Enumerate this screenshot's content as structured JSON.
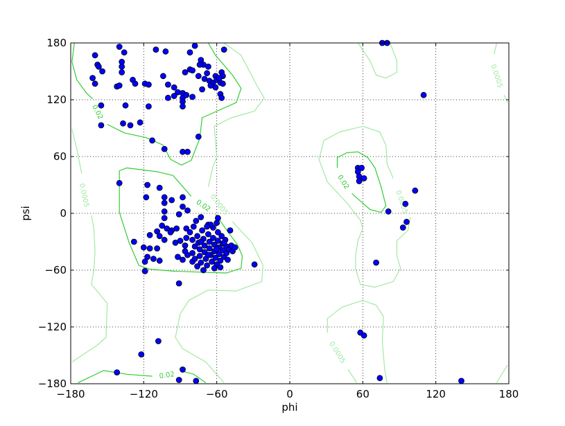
{
  "chart_data": {
    "type": "scatter",
    "title": "",
    "xlabel": "phi",
    "ylabel": "psi",
    "xlim": [
      -180,
      180
    ],
    "ylim": [
      -180,
      180
    ],
    "xticks": [
      -180,
      -120,
      -60,
      0,
      60,
      120,
      180
    ],
    "yticks": [
      -180,
      -120,
      -60,
      0,
      60,
      120,
      180
    ],
    "xtick_labels": [
      "−180",
      "−120",
      "−60",
      "0",
      "60",
      "120",
      "180"
    ],
    "ytick_labels": [
      "−180",
      "−120",
      "−60",
      "0",
      "60",
      "120",
      "180"
    ],
    "grid": true,
    "grid_style": "dotted",
    "colors": {
      "points": "#0000ff",
      "point_edge": "#000000",
      "contour_high": "#33cc33",
      "contour_low": "#a3e8a3"
    },
    "contour_levels": [
      {
        "level": "0.02",
        "color": "#33cc33"
      },
      {
        "level": "0.0005",
        "color": "#a3e8a3"
      }
    ],
    "contours": [
      {
        "level": "0.02",
        "points": [
          [
            -177,
            180
          ],
          [
            -179,
            160
          ],
          [
            -175,
            141
          ],
          [
            -167,
            127
          ],
          [
            -162,
            121
          ]
        ]
      },
      {
        "level": "0.02",
        "points": [
          [
            -150,
            94
          ],
          [
            -136,
            85
          ],
          [
            -118,
            80
          ],
          [
            -104,
            72
          ],
          [
            -98,
            57
          ],
          [
            -89,
            51
          ],
          [
            -81,
            56
          ],
          [
            -74,
            79
          ],
          [
            -72,
            101
          ],
          [
            -44,
            117
          ],
          [
            -40,
            132
          ],
          [
            -47,
            146
          ],
          [
            -61,
            167
          ],
          [
            -67,
            180
          ]
        ]
      },
      {
        "level": "0.02",
        "points": [
          [
            -81,
            18
          ],
          [
            -96,
            40
          ],
          [
            -109,
            44
          ],
          [
            -134,
            48
          ],
          [
            -140,
            45
          ],
          [
            -140,
            30
          ],
          [
            -140,
            1
          ],
          [
            -132,
            -31
          ],
          [
            -124,
            -55
          ],
          [
            -115,
            -59
          ],
          [
            -96,
            -61
          ],
          [
            -77,
            -62
          ],
          [
            -52,
            -63
          ],
          [
            -40,
            -58
          ],
          [
            -39,
            -45
          ],
          [
            -43,
            -33
          ],
          [
            -50,
            -21
          ],
          [
            -61,
            -1
          ]
        ]
      },
      {
        "level": "0.02",
        "points": [
          [
            39,
            48
          ],
          [
            39,
            59
          ],
          [
            47,
            64
          ],
          [
            56,
            65
          ],
          [
            64,
            59
          ],
          [
            70,
            48
          ],
          [
            75,
            28
          ],
          [
            79,
            8
          ],
          [
            75,
            1
          ],
          [
            66,
            4
          ],
          [
            58,
            13
          ],
          [
            51,
            21
          ]
        ]
      },
      {
        "level": "0.02",
        "points": [
          [
            -174,
            -179
          ],
          [
            -153,
            -166
          ],
          [
            -134,
            -170
          ],
          [
            -113,
            -172
          ]
        ]
      },
      {
        "level": "0.02",
        "points": [
          [
            -90,
            -166
          ],
          [
            -79,
            -170
          ],
          [
            -69,
            -179
          ]
        ]
      },
      {
        "level": "0.0005",
        "points": [
          [
            -54,
            180
          ],
          [
            -40,
            167
          ],
          [
            -27,
            135
          ],
          [
            -21,
            122
          ],
          [
            -29,
            108
          ],
          [
            -48,
            101
          ],
          [
            -62,
            92
          ],
          [
            -60,
            59
          ],
          [
            -63,
            50
          ],
          [
            -67,
            28
          ]
        ]
      },
      {
        "level": "0.0005",
        "points": [
          [
            -47,
            -9
          ],
          [
            -31,
            -31
          ],
          [
            -22,
            -55
          ],
          [
            -23,
            -72
          ],
          [
            -44,
            -82
          ],
          [
            -67,
            -81
          ],
          [
            -83,
            -92
          ],
          [
            -90,
            -106
          ],
          [
            -94,
            -131
          ],
          [
            -88,
            -143
          ],
          [
            -69,
            -157
          ],
          [
            -54,
            -179
          ]
        ]
      },
      {
        "level": "0.0005",
        "points": [
          [
            -179,
            89
          ],
          [
            -175,
            68
          ],
          [
            -171,
            42
          ]
        ]
      },
      {
        "level": "0.0005",
        "points": [
          [
            -163,
            -2
          ],
          [
            -161,
            -16
          ],
          [
            -160,
            -40
          ],
          [
            -161,
            -60
          ],
          [
            -163,
            -75
          ],
          [
            -150,
            -95
          ],
          [
            -151,
            -131
          ],
          [
            -158,
            -139
          ],
          [
            -179,
            -157
          ]
        ]
      },
      {
        "level": "0.0005",
        "points": [
          [
            56,
            180
          ],
          [
            66,
            161
          ],
          [
            71,
            146
          ],
          [
            79,
            143
          ],
          [
            88,
            149
          ],
          [
            88,
            161
          ],
          [
            83,
            178
          ],
          [
            82,
            180
          ]
        ]
      },
      {
        "level": "0.0005",
        "points": [
          [
            170,
            180
          ],
          [
            168,
            168
          ]
        ]
      },
      {
        "level": "0.0005",
        "points": [
          [
            176,
            125
          ],
          [
            179,
            117
          ]
        ]
      },
      {
        "level": "0.0005",
        "points": [
          [
            85,
            37
          ],
          [
            80,
            52
          ],
          [
            79,
            72
          ],
          [
            74,
            86
          ],
          [
            60,
            92
          ],
          [
            41,
            86
          ],
          [
            28,
            77
          ],
          [
            24,
            57
          ],
          [
            31,
            33
          ],
          [
            47,
            11
          ],
          [
            58,
            -7
          ],
          [
            60,
            -16
          ],
          [
            56,
            -29
          ],
          [
            54,
            -45
          ],
          [
            54,
            -58
          ],
          [
            58,
            -75
          ],
          [
            70,
            -78
          ],
          [
            85,
            -72
          ],
          [
            91,
            -58
          ],
          [
            88,
            -45
          ],
          [
            88,
            -29
          ],
          [
            97,
            -18
          ],
          [
            99,
            -4
          ]
        ]
      },
      {
        "level": "0.0005",
        "points": [
          [
            31,
            -126
          ],
          [
            31,
            -111
          ],
          [
            43,
            -99
          ],
          [
            60,
            -92
          ],
          [
            71,
            -97
          ],
          [
            77,
            -109
          ],
          [
            76,
            -135
          ],
          [
            78,
            -165
          ],
          [
            80,
            -179
          ]
        ]
      },
      {
        "level": "0.0005",
        "points": [
          [
            48,
            -165
          ],
          [
            55,
            -179
          ]
        ]
      },
      {
        "level": "0.0005",
        "points": [
          [
            170,
            -179
          ],
          [
            179,
            -160
          ]
        ]
      }
    ],
    "contour_labels": [
      {
        "text": "0.02",
        "at": [
          -158,
          107
        ]
      },
      {
        "text": "0.02",
        "at": [
          -71,
          8
        ]
      },
      {
        "text": "0.02",
        "at": [
          44,
          33
        ]
      },
      {
        "text": "0.02",
        "at": [
          -101,
          -171
        ]
      },
      {
        "text": "0.0005",
        "at": [
          -58,
          9
        ]
      },
      {
        "text": "0.0005",
        "at": [
          -169,
          19
        ]
      },
      {
        "text": "0.0005",
        "at": [
          170,
          145
        ]
      },
      {
        "text": "0.0005",
        "at": [
          92,
          12
        ]
      },
      {
        "text": "0.0005",
        "at": [
          39,
          -147
        ]
      }
    ],
    "points": [
      [
        -160,
        167
      ],
      [
        -158,
        157
      ],
      [
        -157,
        155
      ],
      [
        -162,
        143
      ],
      [
        -160,
        137
      ],
      [
        -154,
        150
      ],
      [
        -140,
        176
      ],
      [
        -136,
        170
      ],
      [
        -138,
        160
      ],
      [
        -138,
        155
      ],
      [
        -138,
        149
      ],
      [
        -142,
        134
      ],
      [
        -140,
        135
      ],
      [
        -129,
        141
      ],
      [
        -127,
        137
      ],
      [
        -119,
        137
      ],
      [
        -116,
        136
      ],
      [
        -110,
        173
      ],
      [
        -102,
        171
      ],
      [
        -104,
        145
      ],
      [
        -100,
        136
      ],
      [
        -95,
        133
      ],
      [
        -92,
        128
      ],
      [
        -88,
        127
      ],
      [
        -88,
        122
      ],
      [
        -85,
        125
      ],
      [
        -80,
        123
      ],
      [
        -100,
        122
      ],
      [
        -95,
        124
      ],
      [
        -88,
        118
      ],
      [
        -88,
        113
      ],
      [
        -86,
        149
      ],
      [
        -78,
        177
      ],
      [
        -82,
        170
      ],
      [
        -82,
        152
      ],
      [
        -80,
        151
      ],
      [
        -73,
        162
      ],
      [
        -71,
        157
      ],
      [
        -75,
        145
      ],
      [
        -68,
        148
      ],
      [
        -66,
        140
      ],
      [
        -63,
        138
      ],
      [
        -61,
        145
      ],
      [
        -60,
        141
      ],
      [
        -56,
        149
      ],
      [
        -55,
        145
      ],
      [
        -57,
        138
      ],
      [
        -55,
        137
      ],
      [
        -57,
        126
      ],
      [
        -56,
        122
      ],
      [
        -54,
        173
      ],
      [
        -67,
        155
      ],
      [
        -72,
        131
      ],
      [
        -61,
        133
      ],
      [
        -65,
        135
      ],
      [
        -74,
        157
      ],
      [
        -70,
        142
      ],
      [
        -58,
        143
      ],
      [
        -155,
        114
      ],
      [
        -155,
        93
      ],
      [
        -135,
        114
      ],
      [
        -137,
        95
      ],
      [
        -131,
        93
      ],
      [
        -123,
        96
      ],
      [
        -116,
        113
      ],
      [
        -113,
        77
      ],
      [
        -103,
        68
      ],
      [
        -88,
        65
      ],
      [
        -84,
        65
      ],
      [
        -75,
        81
      ],
      [
        -140,
        32
      ],
      [
        -117,
        30
      ],
      [
        -107,
        27
      ],
      [
        -118,
        17
      ],
      [
        -103,
        17
      ],
      [
        -97,
        14
      ],
      [
        -88,
        17
      ],
      [
        -103,
        11
      ],
      [
        -88,
        7
      ],
      [
        -84,
        3
      ],
      [
        -91,
        -1
      ],
      [
        -103,
        2
      ],
      [
        -103,
        -5
      ],
      [
        -105,
        -13
      ],
      [
        -109,
        -19
      ],
      [
        -101,
        -16
      ],
      [
        -93,
        -16
      ],
      [
        -85,
        -16
      ],
      [
        -77,
        -8
      ],
      [
        -73,
        -4
      ],
      [
        -67,
        -12
      ],
      [
        -59,
        -5
      ],
      [
        -49,
        -18
      ],
      [
        -103,
        -28
      ],
      [
        -90,
        -29
      ],
      [
        -85,
        -26
      ],
      [
        -97,
        -18
      ],
      [
        -115,
        -23
      ],
      [
        -107,
        -24
      ],
      [
        -120,
        -36
      ],
      [
        -115,
        -37
      ],
      [
        -109,
        -37
      ],
      [
        -117,
        -46
      ],
      [
        -112,
        -48
      ],
      [
        -107,
        -50
      ],
      [
        -128,
        -30
      ],
      [
        -119,
        -51
      ],
      [
        -119,
        -61
      ],
      [
        -92,
        -46
      ],
      [
        -88,
        -49
      ],
      [
        -80,
        -51
      ],
      [
        -91,
        -74
      ],
      [
        -29,
        -54
      ],
      [
        -98,
        -20
      ],
      [
        -86,
        -34
      ],
      [
        -94,
        -31
      ],
      [
        -82,
        -20
      ],
      [
        -80,
        -28
      ],
      [
        -78,
        -35
      ],
      [
        -80,
        -42
      ],
      [
        -78,
        -48
      ],
      [
        -76,
        -24
      ],
      [
        -75,
        -31
      ],
      [
        -74,
        -38
      ],
      [
        -74,
        -45
      ],
      [
        -73,
        -52
      ],
      [
        -72,
        -18
      ],
      [
        -71,
        -27
      ],
      [
        -70,
        -34
      ],
      [
        -70,
        -41
      ],
      [
        -69,
        -48
      ],
      [
        -68,
        -55
      ],
      [
        -67,
        -22
      ],
      [
        -66,
        -30
      ],
      [
        -66,
        -37
      ],
      [
        -65,
        -44
      ],
      [
        -64,
        -51
      ],
      [
        -63,
        -15
      ],
      [
        -63,
        -26
      ],
      [
        -62,
        -33
      ],
      [
        -62,
        -40
      ],
      [
        -61,
        -47
      ],
      [
        -60,
        -54
      ],
      [
        -59,
        -20
      ],
      [
        -59,
        -29
      ],
      [
        -58,
        -36
      ],
      [
        -58,
        -43
      ],
      [
        -57,
        -50
      ],
      [
        -56,
        -24
      ],
      [
        -55,
        -32
      ],
      [
        -55,
        -39
      ],
      [
        -54,
        -46
      ],
      [
        -53,
        -28
      ],
      [
        -52,
        -35
      ],
      [
        -52,
        -42
      ],
      [
        -50,
        -38
      ],
      [
        -48,
        -34
      ],
      [
        -47,
        -40
      ],
      [
        -45,
        -36
      ],
      [
        -51,
        -49
      ],
      [
        -76,
        -56
      ],
      [
        -71,
        -60
      ],
      [
        -65,
        -12
      ],
      [
        -60,
        -10
      ],
      [
        -68,
        -14
      ],
      [
        -79,
        -14
      ],
      [
        -84,
        -44
      ],
      [
        -86,
        -40
      ],
      [
        -62,
        -58
      ],
      [
        -57,
        -57
      ],
      [
        -73,
        -30
      ],
      [
        -67,
        -44
      ],
      [
        -60,
        -38
      ],
      [
        -54,
        -31
      ],
      [
        -119,
        -61
      ],
      [
        -108,
        -135
      ],
      [
        -122,
        -149
      ],
      [
        -142,
        -168
      ],
      [
        -88,
        -165
      ],
      [
        -91,
        -176
      ],
      [
        -77,
        -177
      ],
      [
        56,
        48
      ],
      [
        59,
        48
      ],
      [
        56,
        44
      ],
      [
        57,
        39
      ],
      [
        57,
        34
      ],
      [
        61,
        37
      ],
      [
        81,
        2
      ],
      [
        95,
        10
      ],
      [
        96,
        -9
      ],
      [
        93,
        -15
      ],
      [
        103,
        24
      ],
      [
        71,
        -52
      ],
      [
        110,
        125
      ],
      [
        76,
        180
      ],
      [
        80,
        180
      ],
      [
        58,
        -126
      ],
      [
        61,
        -129
      ],
      [
        74,
        -174
      ],
      [
        141,
        -177
      ]
    ]
  }
}
